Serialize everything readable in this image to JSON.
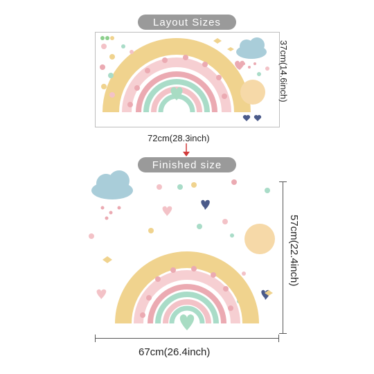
{
  "labels": {
    "layout_title": "Layout Sizes",
    "finished_title": "Finished size",
    "layout_width": "72cm(28.3inch)",
    "layout_height": "37cm(14.6inch)",
    "finished_width": "67cm(26.4inch)",
    "finished_height": "57cm(22.4inch)"
  },
  "colors": {
    "pill": "#9a9a9a",
    "rainbow_yellow": "#f0d38e",
    "rainbow_pink": "#f3c2c7",
    "rainbow_mint": "#a9dcc8",
    "rainbow_rose": "#ebaab2",
    "heart_mint": "#a8dcc3",
    "cloud": "#a9cdd9",
    "sun": "#f6d9a8",
    "navy_heart": "#4b5b8a",
    "arrow": "#d23a3a"
  },
  "icons": [
    "rainbow-icon",
    "cloud-icon",
    "sun-icon",
    "heart-icon",
    "butterfly-icon",
    "dot-icon",
    "arrow-down-icon"
  ]
}
